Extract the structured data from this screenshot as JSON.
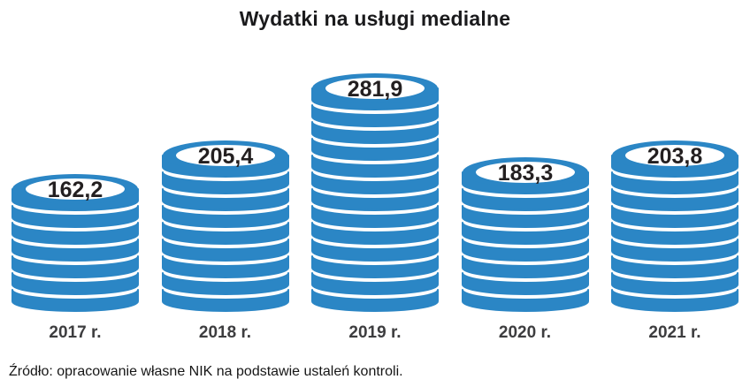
{
  "title": "Wydatki na usługi medialne",
  "source": "Źródło: opracowanie własne NIK na podstawie ustaleń kontroli.",
  "colors": {
    "coin": "#2b86c5",
    "coin_inner": "#ffffff",
    "value_text": "#231f20",
    "year_label": "#3d3d3f",
    "title_text": "#1a1a1c",
    "source_text": "#161616"
  },
  "chart_data": {
    "type": "bar",
    "variant": "coin-stack-pictogram",
    "title": "Wydatki na usługi medialne",
    "categories": [
      "2017 r.",
      "2018 r.",
      "2019 r.",
      "2020 r.",
      "2021 r."
    ],
    "values": [
      162.2,
      205.4,
      281.9,
      183.3,
      203.8
    ],
    "value_labels": [
      "162,2",
      "205,4",
      "281,9",
      "183,3",
      "203,8"
    ],
    "coins_per_stack": [
      7,
      9,
      13,
      8,
      9
    ],
    "xlabel": "",
    "ylabel": "",
    "legend": "none",
    "grid": false,
    "annotation": "Źródło: opracowanie własne NIK na podstawie ustaleń kontroli."
  }
}
